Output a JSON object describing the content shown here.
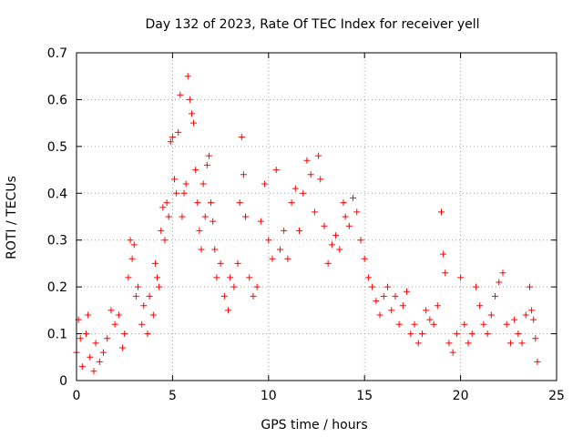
{
  "chart_data": {
    "type": "scatter",
    "title": "Day 132 of 2023, Rate Of TEC Index for receiver yell",
    "xlabel": "GPS time / hours",
    "ylabel": "ROTI / TECUs",
    "xlim": [
      0,
      25
    ],
    "ylim": [
      0,
      0.7
    ],
    "xticks": [
      0,
      5,
      10,
      15,
      20,
      25
    ],
    "xtick_labels": [
      "0",
      "5",
      "10",
      "15",
      "20",
      "25"
    ],
    "yticks": [
      0,
      0.1,
      0.2,
      0.3,
      0.4,
      0.5,
      0.6,
      0.7
    ],
    "ytick_labels": [
      "0",
      "0.1",
      "0.2",
      "0.3",
      "0.4",
      "0.5",
      "0.6",
      "0.7"
    ],
    "grid": true,
    "marker": "+",
    "color": "#ff0000",
    "points": [
      [
        0.0,
        0.06
      ],
      [
        0.1,
        0.13
      ],
      [
        0.2,
        0.09
      ],
      [
        0.3,
        0.03
      ],
      [
        0.5,
        0.1
      ],
      [
        0.6,
        0.14
      ],
      [
        0.7,
        0.05
      ],
      [
        0.9,
        0.02
      ],
      [
        1.0,
        0.08
      ],
      [
        1.2,
        0.04
      ],
      [
        1.4,
        0.06
      ],
      [
        1.6,
        0.09
      ],
      [
        1.8,
        0.15
      ],
      [
        2.0,
        0.12
      ],
      [
        2.2,
        0.14
      ],
      [
        2.4,
        0.07
      ],
      [
        2.5,
        0.1
      ],
      [
        2.7,
        0.22
      ],
      [
        2.8,
        0.3
      ],
      [
        2.9,
        0.26
      ],
      [
        3.0,
        0.29
      ],
      [
        3.1,
        0.18
      ],
      [
        3.2,
        0.2
      ],
      [
        3.4,
        0.12
      ],
      [
        3.5,
        0.16
      ],
      [
        3.7,
        0.1
      ],
      [
        3.8,
        0.18
      ],
      [
        4.0,
        0.14
      ],
      [
        4.1,
        0.25
      ],
      [
        4.2,
        0.22
      ],
      [
        4.3,
        0.2
      ],
      [
        4.4,
        0.32
      ],
      [
        4.5,
        0.37
      ],
      [
        4.6,
        0.3
      ],
      [
        4.7,
        0.38
      ],
      [
        4.8,
        0.35
      ],
      [
        4.9,
        0.51
      ],
      [
        5.0,
        0.52
      ],
      [
        5.1,
        0.43
      ],
      [
        5.2,
        0.4
      ],
      [
        5.3,
        0.53
      ],
      [
        5.4,
        0.61
      ],
      [
        5.5,
        0.35
      ],
      [
        5.6,
        0.4
      ],
      [
        5.7,
        0.42
      ],
      [
        5.8,
        0.65
      ],
      [
        5.9,
        0.6
      ],
      [
        6.0,
        0.57
      ],
      [
        6.1,
        0.55
      ],
      [
        6.2,
        0.45
      ],
      [
        6.3,
        0.38
      ],
      [
        6.4,
        0.32
      ],
      [
        6.5,
        0.28
      ],
      [
        6.6,
        0.42
      ],
      [
        6.7,
        0.35
      ],
      [
        6.8,
        0.46
      ],
      [
        6.9,
        0.48
      ],
      [
        7.0,
        0.38
      ],
      [
        7.1,
        0.34
      ],
      [
        7.2,
        0.28
      ],
      [
        7.3,
        0.22
      ],
      [
        7.5,
        0.25
      ],
      [
        7.7,
        0.18
      ],
      [
        7.9,
        0.15
      ],
      [
        8.0,
        0.22
      ],
      [
        8.2,
        0.2
      ],
      [
        8.4,
        0.25
      ],
      [
        8.5,
        0.38
      ],
      [
        8.6,
        0.52
      ],
      [
        8.7,
        0.44
      ],
      [
        8.8,
        0.35
      ],
      [
        9.0,
        0.22
      ],
      [
        9.2,
        0.18
      ],
      [
        9.4,
        0.2
      ],
      [
        9.6,
        0.34
      ],
      [
        9.8,
        0.42
      ],
      [
        10.0,
        0.3
      ],
      [
        10.2,
        0.26
      ],
      [
        10.4,
        0.45
      ],
      [
        10.6,
        0.28
      ],
      [
        10.8,
        0.32
      ],
      [
        11.0,
        0.26
      ],
      [
        11.2,
        0.38
      ],
      [
        11.4,
        0.41
      ],
      [
        11.6,
        0.32
      ],
      [
        11.8,
        0.4
      ],
      [
        12.0,
        0.47
      ],
      [
        12.2,
        0.44
      ],
      [
        12.4,
        0.36
      ],
      [
        12.6,
        0.48
      ],
      [
        12.7,
        0.43
      ],
      [
        12.9,
        0.33
      ],
      [
        13.1,
        0.25
      ],
      [
        13.3,
        0.29
      ],
      [
        13.5,
        0.31
      ],
      [
        13.7,
        0.28
      ],
      [
        13.9,
        0.38
      ],
      [
        14.0,
        0.35
      ],
      [
        14.2,
        0.33
      ],
      [
        14.4,
        0.39
      ],
      [
        14.6,
        0.36
      ],
      [
        14.8,
        0.3
      ],
      [
        15.0,
        0.26
      ],
      [
        15.2,
        0.22
      ],
      [
        15.4,
        0.2
      ],
      [
        15.6,
        0.17
      ],
      [
        15.8,
        0.14
      ],
      [
        16.0,
        0.18
      ],
      [
        16.2,
        0.2
      ],
      [
        16.4,
        0.15
      ],
      [
        16.6,
        0.18
      ],
      [
        16.8,
        0.12
      ],
      [
        17.0,
        0.16
      ],
      [
        17.2,
        0.19
      ],
      [
        17.4,
        0.1
      ],
      [
        17.6,
        0.12
      ],
      [
        17.8,
        0.08
      ],
      [
        18.0,
        0.1
      ],
      [
        18.2,
        0.15
      ],
      [
        18.4,
        0.13
      ],
      [
        18.6,
        0.12
      ],
      [
        18.8,
        0.16
      ],
      [
        19.0,
        0.36
      ],
      [
        19.1,
        0.27
      ],
      [
        19.2,
        0.23
      ],
      [
        19.4,
        0.08
      ],
      [
        19.6,
        0.06
      ],
      [
        19.8,
        0.1
      ],
      [
        20.0,
        0.22
      ],
      [
        20.2,
        0.12
      ],
      [
        20.4,
        0.08
      ],
      [
        20.6,
        0.1
      ],
      [
        20.8,
        0.2
      ],
      [
        21.0,
        0.16
      ],
      [
        21.2,
        0.12
      ],
      [
        21.4,
        0.1
      ],
      [
        21.6,
        0.14
      ],
      [
        21.8,
        0.18
      ],
      [
        22.0,
        0.21
      ],
      [
        22.2,
        0.23
      ],
      [
        22.4,
        0.12
      ],
      [
        22.6,
        0.08
      ],
      [
        22.8,
        0.13
      ],
      [
        23.0,
        0.1
      ],
      [
        23.2,
        0.08
      ],
      [
        23.4,
        0.14
      ],
      [
        23.6,
        0.2
      ],
      [
        23.7,
        0.15
      ],
      [
        23.8,
        0.13
      ],
      [
        23.9,
        0.09
      ],
      [
        24.0,
        0.04
      ]
    ]
  }
}
